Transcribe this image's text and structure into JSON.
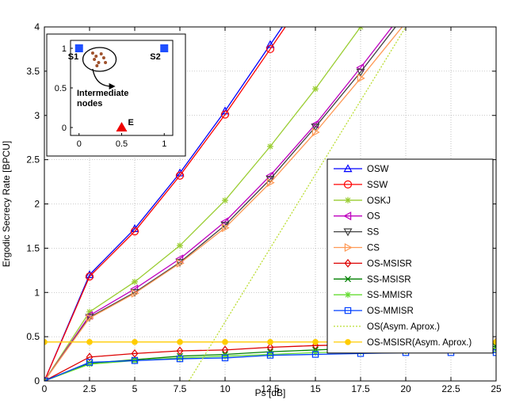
{
  "chart_data": {
    "type": "line",
    "xlabel": "Ps [dB]",
    "ylabel": "Ergodic Secrecy Rate [BPCU]",
    "xlim": [
      0,
      25
    ],
    "ylim": [
      0,
      4
    ],
    "grid": true,
    "legend_position": "right-middle",
    "x_ticks": [
      "0",
      "2.5",
      "5",
      "7.5",
      "10",
      "12.5",
      "15",
      "17.5",
      "20",
      "22.5",
      "25"
    ],
    "y_ticks": [
      "0",
      "0.5",
      "1",
      "1.5",
      "2",
      "2.5",
      "3",
      "3.5",
      "4"
    ],
    "x": [
      0,
      2.5,
      5,
      7.5,
      10,
      12.5,
      15,
      17.5,
      20,
      22.5,
      25
    ],
    "series": [
      {
        "name": "OSW",
        "color": "#0000ff",
        "marker": "triangle-up",
        "dash": "",
        "values": [
          0,
          1.2,
          1.72,
          2.35,
          3.05,
          3.8,
          4.55,
          null,
          null,
          null,
          null
        ]
      },
      {
        "name": "SSW",
        "color": "#ff0000",
        "marker": "circle",
        "dash": "",
        "values": [
          0,
          1.18,
          1.69,
          2.32,
          3.01,
          3.75,
          4.5,
          null,
          null,
          null,
          null
        ]
      },
      {
        "name": "OSKJ",
        "color": "#9acd32",
        "marker": "star",
        "dash": "",
        "values": [
          0,
          0.78,
          1.12,
          1.53,
          2.04,
          2.65,
          3.3,
          4.0,
          null,
          null,
          null
        ]
      },
      {
        "name": "OS",
        "color": "#bf00bf",
        "marker": "triangle-left",
        "dash": "",
        "values": [
          0,
          0.74,
          1.04,
          1.38,
          1.8,
          2.32,
          2.9,
          3.54,
          4.2,
          null,
          null
        ]
      },
      {
        "name": "SS",
        "color": "#404040",
        "marker": "triangle-down",
        "dash": "",
        "values": [
          0,
          0.72,
          1.0,
          1.34,
          1.76,
          2.28,
          2.87,
          3.49,
          4.15,
          null,
          null
        ]
      },
      {
        "name": "CS",
        "color": "#ff9955",
        "marker": "triangle-right",
        "dash": "",
        "values": [
          0,
          0.71,
          0.99,
          1.33,
          1.73,
          2.24,
          2.81,
          3.42,
          4.05,
          null,
          null
        ]
      },
      {
        "name": "OS-MSISR",
        "color": "#dd0000",
        "marker": "diamond",
        "dash": "",
        "values": [
          0,
          0.27,
          0.31,
          0.34,
          0.35,
          0.38,
          0.4,
          0.41,
          0.43,
          0.44,
          0.44
        ]
      },
      {
        "name": "SS-MSISR",
        "color": "#008000",
        "marker": "x",
        "dash": "",
        "values": [
          0,
          0.2,
          0.24,
          0.28,
          0.3,
          0.33,
          0.35,
          0.37,
          0.38,
          0.39,
          0.39
        ]
      },
      {
        "name": "SS-MMISR",
        "color": "#66dd33",
        "marker": "star",
        "dash": "",
        "values": [
          0,
          0.19,
          0.23,
          0.26,
          0.28,
          0.3,
          0.32,
          0.33,
          0.34,
          0.35,
          0.35
        ]
      },
      {
        "name": "OS-MMISR",
        "color": "#0040ff",
        "marker": "square",
        "dash": "",
        "values": [
          0,
          0.21,
          0.23,
          0.25,
          0.26,
          0.29,
          0.3,
          0.31,
          0.32,
          0.32,
          0.32
        ]
      },
      {
        "name": "OS(Asym. Aprox.)",
        "color": "#bbdd33",
        "marker": "none",
        "dash": "2,2",
        "x": [
          8.0,
          20.0
        ],
        "values": [
          0,
          4.0
        ]
      },
      {
        "name": "OS-MSISR(Asym. Aprox.)",
        "color": "#ffcc00",
        "marker": "filled-circle",
        "dash": "",
        "values": [
          0.44,
          0.44,
          0.44,
          0.44,
          0.44,
          0.44,
          0.44,
          0.44,
          0.44,
          0.44,
          0.44
        ]
      }
    ]
  },
  "inset": {
    "x_ticks": [
      "0",
      "0.5",
      "1"
    ],
    "y_ticks": [
      "0",
      "0.5",
      "1"
    ],
    "xlim": [
      -0.1,
      1.1
    ],
    "ylim": [
      -0.1,
      1.1
    ],
    "s1_label": "S1",
    "s2_label": "S2",
    "e_label": "E",
    "intermediate_label_line1": "Intermediate",
    "intermediate_label_line2": "nodes",
    "s1": [
      0,
      1
    ],
    "s2": [
      1,
      1
    ],
    "e": [
      0.5,
      0
    ],
    "source_color": "#1f4fff",
    "eve_color": "#ee0000",
    "node_color": "#a0522d",
    "nodes": [
      [
        0.18,
        0.86
      ],
      [
        0.2,
        0.9
      ],
      [
        0.23,
        0.82
      ],
      [
        0.26,
        0.93
      ],
      [
        0.29,
        0.88
      ],
      [
        0.21,
        0.78
      ],
      [
        0.31,
        0.82
      ],
      [
        0.16,
        0.94
      ]
    ]
  }
}
